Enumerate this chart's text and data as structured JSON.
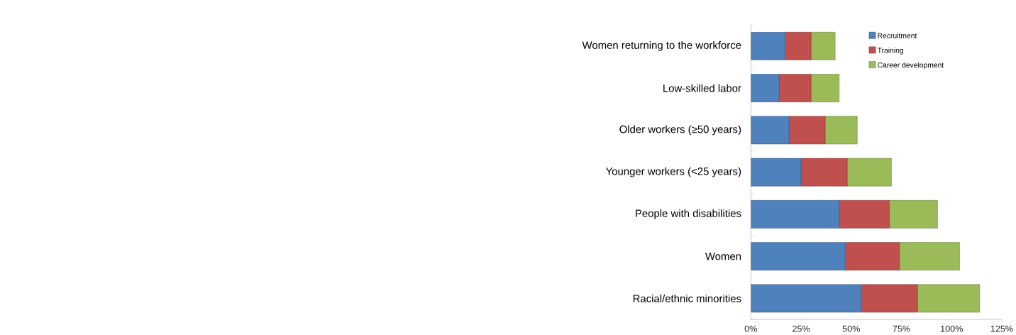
{
  "chart_data": {
    "type": "bar",
    "orientation": "horizontal",
    "stacked": true,
    "categories": [
      "Women returning to the workforce",
      "Low-skilled labor",
      "Older workers (≥50 years)",
      "Younger workers (<25 years)",
      "People with disabilities",
      "Women",
      "Racial/ethnic minorities"
    ],
    "series": [
      {
        "name": "Recruitment",
        "color": "#4f81bd",
        "values": [
          17,
          14,
          19,
          25,
          44,
          47,
          55
        ]
      },
      {
        "name": "Training",
        "color": "#c0504d",
        "values": [
          13,
          16,
          18,
          23,
          25,
          27,
          28
        ]
      },
      {
        "name": "Career development",
        "color": "#9bbb59",
        "values": [
          12,
          14,
          16,
          22,
          24,
          30,
          31
        ]
      }
    ],
    "xlim": [
      0,
      125
    ],
    "xticks": [
      {
        "value": 0,
        "label": "0%"
      },
      {
        "value": 25,
        "label": "25%"
      },
      {
        "value": 50,
        "label": "50%"
      },
      {
        "value": 75,
        "label": "75%"
      },
      {
        "value": 100,
        "label": "100%"
      },
      {
        "value": 125,
        "label": "125%"
      }
    ],
    "legend": "top right",
    "grid": false
  }
}
